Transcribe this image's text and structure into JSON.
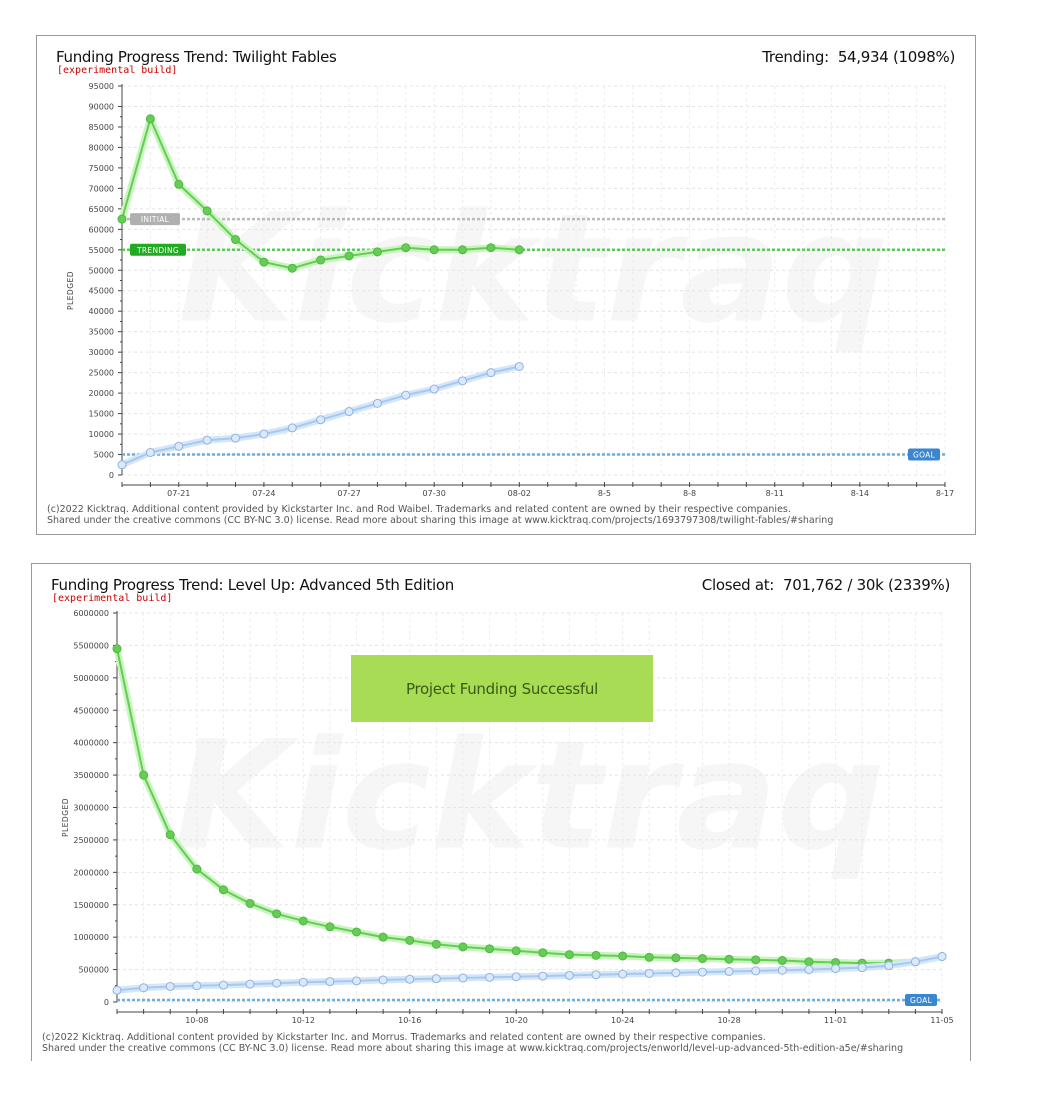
{
  "charts": [
    {
      "title": "Funding Progress Trend: Twilight Fables",
      "subtitle": "[experimental build]",
      "status_label": "Trending:",
      "status_value": "54,934 (1098%)",
      "ylabel": "PLEDGED",
      "footer_line1": "(c)2022 Kicktraq. Additional content provided by Kickstarter Inc. and Rod Waibel. Trademarks and related content are owned by their respective companies.",
      "footer_line2": "Shared under the creative commons (CC BY-NC 3.0) license. Read more about sharing this image at www.kicktraq.com/projects/1693797308/twilight-fables/#sharing",
      "ref_lines": [
        {
          "label": "INITIAL",
          "value": 62500,
          "color": "#bbbbbb",
          "label_bg": "#b0b0b0",
          "label_side": "left"
        },
        {
          "label": "TRENDING",
          "value": 55000,
          "color": "#55cc55",
          "label_bg": "#22aa22",
          "label_side": "left"
        },
        {
          "label": "GOAL",
          "value": 5000,
          "color": "#6aaee0",
          "label_bg": "#3a86cf",
          "label_side": "right"
        }
      ]
    },
    {
      "title": "Funding Progress Trend: Level Up: Advanced 5th Edition",
      "subtitle": "[experimental build]",
      "status_label": "Closed at:",
      "status_value": "701,762 /  30k (2339%)",
      "ylabel": "PLEDGED",
      "banner": "Project Funding Successful",
      "footer_line1": "(c)2022 Kicktraq. Additional content provided by Kickstarter Inc. and Morrus. Trademarks and related content are owned by their respective companies.",
      "footer_line2": "Shared under the creative commons (CC BY-NC 3.0) license. Read more about sharing this image at www.kicktraq.com/projects/enworld/level-up-advanced-5th-edition-a5e/#sharing",
      "ref_lines": [
        {
          "label": "GOAL",
          "value": 30000,
          "color": "#6aaee0",
          "label_bg": "#3a86cf",
          "label_side": "right"
        }
      ]
    }
  ],
  "chart_data": [
    {
      "type": "line",
      "ylim": [
        0,
        95000
      ],
      "ytick_step": 5000,
      "x_count": 30,
      "x_ticks": [
        {
          "i": 2,
          "label": "07-21"
        },
        {
          "i": 5,
          "label": "07-24"
        },
        {
          "i": 8,
          "label": "07-27"
        },
        {
          "i": 11,
          "label": "07-30"
        },
        {
          "i": 14,
          "label": "08-02"
        },
        {
          "i": 17,
          "label": "8-5"
        },
        {
          "i": 20,
          "label": "8-8"
        },
        {
          "i": 23,
          "label": "8-11"
        },
        {
          "i": 26,
          "label": "8-14"
        },
        {
          "i": 29,
          "label": "8-17"
        }
      ],
      "series": [
        {
          "color": "#66cc55",
          "halo": "#c8f5bd",
          "values": [
            62500,
            87000,
            71000,
            64500,
            57500,
            52000,
            50500,
            52500,
            53500,
            54500,
            55500,
            55000,
            55000,
            55500,
            55000
          ]
        },
        {
          "color": "#a8c8ee",
          "halo": "#d4e6fa",
          "hollow": true,
          "values": [
            2500,
            5500,
            7000,
            8500,
            9000,
            10000,
            11500,
            13500,
            15500,
            17500,
            19500,
            21000,
            23000,
            25000,
            26500
          ]
        }
      ]
    },
    {
      "type": "line",
      "ylim": [
        0,
        6000000
      ],
      "ytick_step": 500000,
      "x_count": 32,
      "x_ticks": [
        {
          "i": 3,
          "label": "10-08"
        },
        {
          "i": 7,
          "label": "10-12"
        },
        {
          "i": 11,
          "label": "10-16"
        },
        {
          "i": 15,
          "label": "10-20"
        },
        {
          "i": 19,
          "label": "10-24"
        },
        {
          "i": 23,
          "label": "10-28"
        },
        {
          "i": 27,
          "label": "11-01"
        },
        {
          "i": 31,
          "label": "11-05"
        }
      ],
      "series": [
        {
          "color": "#66cc55",
          "halo": "#c8f5bd",
          "values": [
            5450000,
            3500000,
            2580000,
            2050000,
            1730000,
            1520000,
            1360000,
            1250000,
            1160000,
            1080000,
            1000000,
            950000,
            890000,
            850000,
            820000,
            790000,
            760000,
            730000,
            720000,
            710000,
            690000,
            680000,
            670000,
            660000,
            650000,
            640000,
            620000,
            610000,
            600000,
            600000,
            620000,
            701762
          ]
        },
        {
          "color": "#a8c8ee",
          "halo": "#d4e6fa",
          "hollow": true,
          "values": [
            180000,
            220000,
            240000,
            250000,
            260000,
            275000,
            290000,
            305000,
            315000,
            325000,
            340000,
            350000,
            360000,
            370000,
            380000,
            390000,
            400000,
            410000,
            420000,
            430000,
            440000,
            450000,
            460000,
            470000,
            480000,
            490000,
            500000,
            515000,
            530000,
            560000,
            620000,
            701762
          ]
        }
      ]
    }
  ]
}
